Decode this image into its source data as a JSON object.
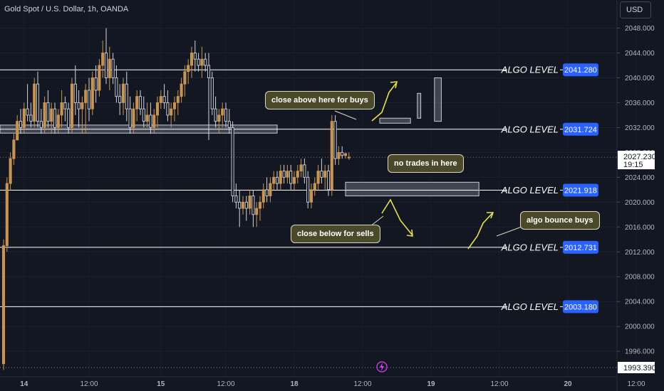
{
  "header": {
    "title": "Gold Spot / U.S. Dollar, 1h, OANDA",
    "currency": "USD"
  },
  "annotations": {
    "buys": "close above here for buys",
    "no_trades": "no trades in here",
    "sells": "close below for sells",
    "bounce": "algo bounce buys"
  },
  "colors": {
    "background": "#131722",
    "candle": "#c8944f",
    "level_line": "#ffffff",
    "level_tag": "#2962ff",
    "arrow": "#e6e24a",
    "price_tag": "#ffffff"
  },
  "chart_data": {
    "type": "candlestick",
    "ylim": [
      1993.39,
      2050
    ],
    "yticks": [
      1996,
      2000,
      2004,
      2008,
      2012,
      2016,
      2020,
      2024,
      2028,
      2032,
      2036,
      2040,
      2044,
      2048
    ],
    "ytick_labels": [
      "1996.000",
      "2000.000",
      "2004.000",
      "2008.000",
      "2012.000",
      "2016.000",
      "2020.000",
      "2024.000",
      "2028.000",
      "2032.000",
      "2036.000",
      "2040.000",
      "2044.000",
      "2048.000"
    ],
    "xtick_labels": [
      "14",
      "12:00",
      "15",
      "12:00",
      "18",
      "12:00",
      "19",
      "12:00",
      "20",
      "12:00"
    ],
    "xtick_index": [
      6,
      25,
      46,
      65,
      85,
      105,
      125,
      145,
      165,
      185
    ],
    "levels": [
      {
        "name": "ALGO LEVEL",
        "value": 2041.28,
        "label": "2041.280"
      },
      {
        "name": "ALGO LEVEL",
        "value": 2031.724,
        "label": "2031.724"
      },
      {
        "name": "ALGO LEVEL",
        "value": 2021.918,
        "label": "2021.918"
      },
      {
        "name": "ALGO LEVEL",
        "value": 2012.731,
        "label": "2012.731"
      },
      {
        "name": "ALGO LEVEL",
        "value": 2003.18,
        "label": "2003.180"
      }
    ],
    "current_price": {
      "value": 2027.23,
      "label": "2027.230",
      "countdown": "19:15"
    },
    "bottom_price": {
      "value": 1993.39,
      "label": "1993.390"
    },
    "zones": [
      {
        "i0": -1,
        "i1": 80,
        "y0": 2031.1,
        "y1": 2032.4
      },
      {
        "i0": 100,
        "i1": 139,
        "y0": 2021.0,
        "y1": 2023.2
      },
      {
        "i0": 110,
        "i1": 119,
        "y0": 2032.7,
        "y1": 2033.5
      },
      {
        "i0": 121,
        "i1": 122,
        "y0": 2033.5,
        "y1": 2037.5
      },
      {
        "i0": 126,
        "i1": 128,
        "y0": 2033.0,
        "y1": 2040.0
      }
    ],
    "ohlc": [
      [
        1994,
        2014,
        1993,
        2013
      ],
      [
        2013,
        2024,
        2012,
        2023
      ],
      [
        2023,
        2028,
        2022,
        2027
      ],
      [
        2027,
        2031,
        2026,
        2030
      ],
      [
        2030,
        2034,
        2030,
        2033
      ],
      [
        2033,
        2035,
        2031,
        2032
      ],
      [
        2032,
        2036,
        2031,
        2035
      ],
      [
        2035,
        2039,
        2033,
        2034
      ],
      [
        2034,
        2036,
        2032,
        2033
      ],
      [
        2033,
        2040,
        2032,
        2039
      ],
      [
        2039,
        2041,
        2032,
        2033
      ],
      [
        2033,
        2035,
        2031,
        2032
      ],
      [
        2032,
        2037,
        2031,
        2036
      ],
      [
        2036,
        2038,
        2032,
        2033
      ],
      [
        2033,
        2036,
        2031,
        2035
      ],
      [
        2035,
        2036,
        2031,
        2032
      ],
      [
        2032,
        2035,
        2031,
        2034
      ],
      [
        2034,
        2038,
        2032,
        2036
      ],
      [
        2036,
        2037,
        2033,
        2035
      ],
      [
        2035,
        2036,
        2031,
        2032
      ],
      [
        2032,
        2040,
        2031,
        2039
      ],
      [
        2039,
        2042,
        2034,
        2036
      ],
      [
        2036,
        2038,
        2032,
        2035
      ],
      [
        2035,
        2037,
        2031,
        2036
      ],
      [
        2036,
        2039,
        2031,
        2038
      ],
      [
        2038,
        2040,
        2033,
        2035
      ],
      [
        2035,
        2041,
        2034,
        2040
      ],
      [
        2040,
        2042,
        2036,
        2038
      ],
      [
        2038,
        2043,
        2037,
        2042
      ],
      [
        2042,
        2046,
        2040,
        2044
      ],
      [
        2044,
        2048,
        2039,
        2040
      ],
      [
        2040,
        2045,
        2038,
        2043
      ],
      [
        2043,
        2044,
        2039,
        2040
      ],
      [
        2040,
        2042,
        2036,
        2037
      ],
      [
        2037,
        2039,
        2034,
        2036
      ],
      [
        2036,
        2040,
        2034,
        2039
      ],
      [
        2039,
        2041,
        2033,
        2035
      ],
      [
        2035,
        2037,
        2031,
        2032
      ],
      [
        2032,
        2036,
        2031,
        2035
      ],
      [
        2035,
        2038,
        2033,
        2037
      ],
      [
        2037,
        2038,
        2034,
        2035
      ],
      [
        2035,
        2037,
        2032,
        2033
      ],
      [
        2033,
        2036,
        2032,
        2034
      ],
      [
        2034,
        2036,
        2031,
        2032
      ],
      [
        2032,
        2035,
        2031,
        2034
      ],
      [
        2034,
        2037,
        2032,
        2036
      ],
      [
        2036,
        2038,
        2035,
        2037
      ],
      [
        2037,
        2039,
        2035,
        2036
      ],
      [
        2036,
        2038,
        2033,
        2034
      ],
      [
        2034,
        2036,
        2032,
        2035
      ],
      [
        2035,
        2037,
        2033,
        2036
      ],
      [
        2036,
        2038,
        2034,
        2037
      ],
      [
        2037,
        2040,
        2036,
        2039
      ],
      [
        2039,
        2042,
        2037,
        2041
      ],
      [
        2041,
        2043,
        2039,
        2042
      ],
      [
        2042,
        2045,
        2040,
        2044
      ],
      [
        2044,
        2046,
        2041,
        2043
      ],
      [
        2043,
        2044,
        2041,
        2042
      ],
      [
        2042,
        2045,
        2040,
        2043
      ],
      [
        2043,
        2044,
        2041,
        2042
      ],
      [
        2042,
        2044,
        2030,
        2040
      ],
      [
        2040,
        2041,
        2034,
        2035
      ],
      [
        2035,
        2037,
        2032,
        2033
      ],
      [
        2033,
        2035,
        2031,
        2034
      ],
      [
        2034,
        2036,
        2032,
        2035
      ],
      [
        2035,
        2036,
        2032,
        2033
      ],
      [
        2033,
        2035,
        2031,
        2032
      ],
      [
        2032,
        2033,
        2020,
        2021
      ],
      [
        2021,
        2023,
        2019,
        2020
      ],
      [
        2020,
        2022,
        2016,
        2019
      ],
      [
        2019,
        2021,
        2018,
        2020
      ],
      [
        2020,
        2021,
        2017,
        2019
      ],
      [
        2019,
        2022,
        2018,
        2021
      ],
      [
        2021,
        2022,
        2016,
        2018
      ],
      [
        2018,
        2020,
        2016,
        2019
      ],
      [
        2019,
        2021,
        2017,
        2020
      ],
      [
        2020,
        2023,
        2019,
        2022
      ],
      [
        2022,
        2024,
        2020,
        2021
      ],
      [
        2021,
        2024,
        2020,
        2023
      ],
      [
        2023,
        2025,
        2022,
        2024
      ],
      [
        2024,
        2025,
        2022,
        2023
      ],
      [
        2023,
        2026,
        2022,
        2025
      ],
      [
        2025,
        2026,
        2023,
        2024
      ],
      [
        2024,
        2026,
        2023,
        2025
      ],
      [
        2025,
        2026,
        2022,
        2023
      ],
      [
        2023,
        2025,
        2022,
        2024
      ],
      [
        2024,
        2026,
        2023,
        2025
      ],
      [
        2025,
        2027,
        2024,
        2026
      ],
      [
        2026,
        2027,
        2023,
        2024
      ],
      [
        2024,
        2025,
        2019,
        2020
      ],
      [
        2020,
        2023,
        2019,
        2022
      ],
      [
        2022,
        2024,
        2021,
        2023
      ],
      [
        2023,
        2026,
        2022,
        2025
      ],
      [
        2025,
        2027,
        2023,
        2024
      ],
      [
        2024,
        2026,
        2022,
        2025
      ],
      [
        2025,
        2026,
        2021,
        2022
      ],
      [
        2022,
        2034,
        2021,
        2033
      ],
      [
        2033,
        2034,
        2026,
        2027
      ],
      [
        2027,
        2029,
        2026,
        2028
      ],
      [
        2028,
        2029,
        2027,
        2027.5
      ],
      [
        2027.5,
        2028,
        2027,
        2027.8
      ],
      [
        2027.2,
        2028,
        2026.8,
        2027.23
      ]
    ]
  }
}
